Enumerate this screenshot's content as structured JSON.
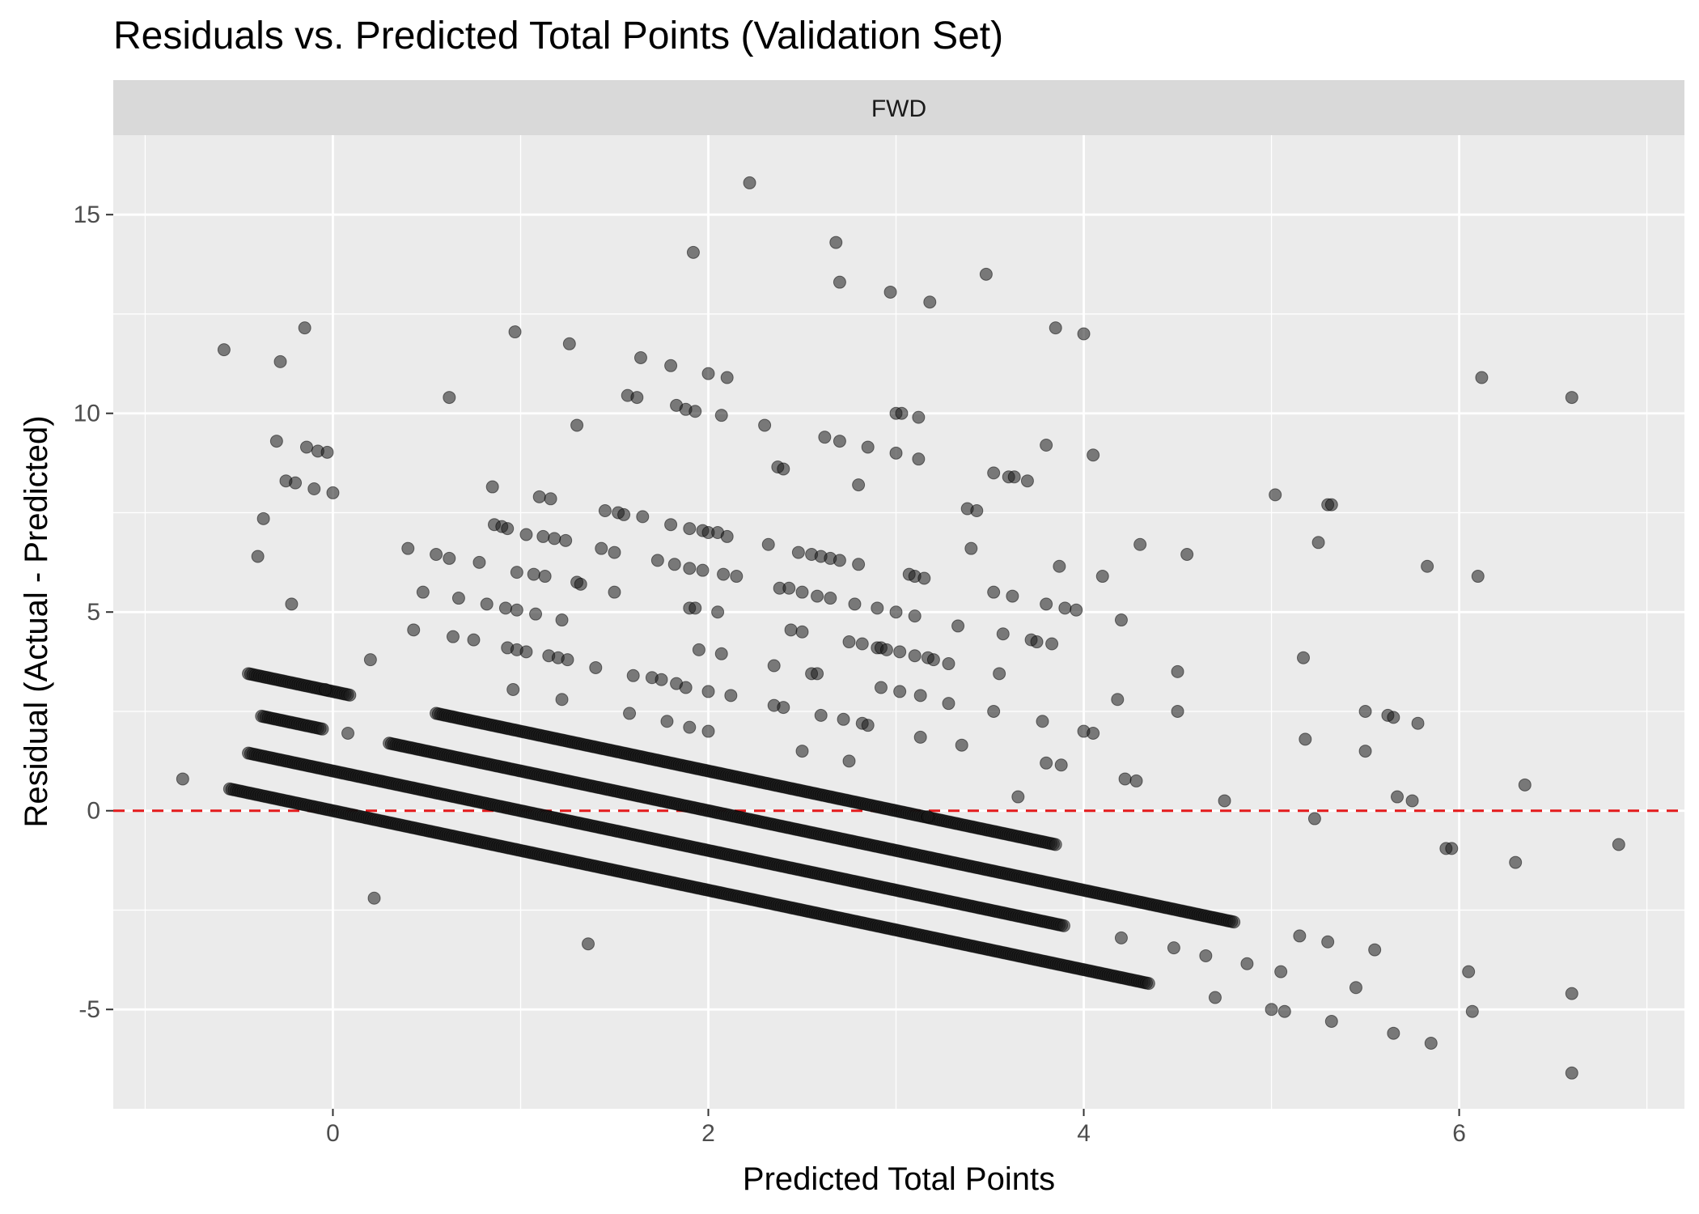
{
  "chart_data": {
    "type": "scatter",
    "title": "Residuals vs. Predicted Total Points (Validation Set)",
    "facet_label": "FWD",
    "xlabel": "Predicted Total Points",
    "ylabel": "Residual (Actual - Predicted)",
    "xlim": [
      -1.17,
      7.2
    ],
    "ylim": [
      -7.5,
      17.0
    ],
    "x_ticks": [
      0,
      2,
      4,
      6
    ],
    "x_tick_labels": [
      "0",
      "2",
      "4",
      "6"
    ],
    "y_ticks": [
      -5,
      0,
      5,
      10,
      15
    ],
    "y_tick_labels": [
      "-5",
      "0",
      "5",
      "10",
      "15"
    ],
    "reference_line": {
      "y": 0,
      "color": "#e41a1c",
      "style": "dashed"
    },
    "point_color": "#1a1a1a",
    "point_opacity": 0.55,
    "grid": true,
    "background_color": "#ebebeb",
    "strip_color": "#d9d9d9",
    "bands": [
      {
        "actual": 0,
        "x_start": -0.55,
        "x_end": 4.35
      },
      {
        "actual": 1,
        "x_start": -0.45,
        "x_end": 3.9
      },
      {
        "actual": 2,
        "x_start": 0.3,
        "x_end": 4.8
      },
      {
        "actual": 3,
        "x_start": -0.45,
        "x_end": 0.1
      },
      {
        "actual": 3,
        "x_start": 0.55,
        "x_end": 3.85
      },
      {
        "actual": 2,
        "x_start": -0.38,
        "x_end": -0.05
      }
    ],
    "points": [
      [
        -0.8,
        0.8
      ],
      [
        -0.58,
        11.6
      ],
      [
        -0.4,
        6.4
      ],
      [
        -0.37,
        7.35
      ],
      [
        -0.3,
        9.3
      ],
      [
        -0.28,
        11.3
      ],
      [
        -0.22,
        5.2
      ],
      [
        -0.25,
        8.3
      ],
      [
        -0.2,
        8.25
      ],
      [
        -0.15,
        12.15
      ],
      [
        -0.14,
        9.15
      ],
      [
        -0.1,
        8.1
      ],
      [
        -0.08,
        9.05
      ],
      [
        -0.03,
        9.02
      ],
      [
        0.0,
        8.0
      ],
      [
        -0.04,
        3.05
      ],
      [
        0.08,
        1.95
      ],
      [
        0.2,
        3.8
      ],
      [
        0.22,
        -2.2
      ],
      [
        0.4,
        6.6
      ],
      [
        0.43,
        4.55
      ],
      [
        0.48,
        5.5
      ],
      [
        0.55,
        6.45
      ],
      [
        0.62,
        10.4
      ],
      [
        0.62,
        6.35
      ],
      [
        0.64,
        4.38
      ],
      [
        0.67,
        5.35
      ],
      [
        0.75,
        4.3
      ],
      [
        0.78,
        6.25
      ],
      [
        0.82,
        5.2
      ],
      [
        0.85,
        8.15
      ],
      [
        0.86,
        7.2
      ],
      [
        0.9,
        7.15
      ],
      [
        0.92,
        5.1
      ],
      [
        0.93,
        7.1
      ],
      [
        0.93,
        4.1
      ],
      [
        0.98,
        4.05
      ],
      [
        0.98,
        5.05
      ],
      [
        0.96,
        3.05
      ],
      [
        0.97,
        12.05
      ],
      [
        0.98,
        6.0
      ],
      [
        1.03,
        6.95
      ],
      [
        1.03,
        4.0
      ],
      [
        1.07,
        5.95
      ],
      [
        1.08,
        4.95
      ],
      [
        1.1,
        7.9
      ],
      [
        1.12,
        6.9
      ],
      [
        1.13,
        5.9
      ],
      [
        1.15,
        3.9
      ],
      [
        1.16,
        7.85
      ],
      [
        1.18,
        6.85
      ],
      [
        1.2,
        3.85
      ],
      [
        1.22,
        2.8
      ],
      [
        1.22,
        4.8
      ],
      [
        1.24,
        6.8
      ],
      [
        1.25,
        3.8
      ],
      [
        1.26,
        11.75
      ],
      [
        1.3,
        9.7
      ],
      [
        1.3,
        5.75
      ],
      [
        1.32,
        5.7
      ],
      [
        1.36,
        -3.35
      ],
      [
        1.4,
        3.6
      ],
      [
        1.43,
        6.6
      ],
      [
        1.45,
        7.55
      ],
      [
        1.5,
        6.5
      ],
      [
        1.5,
        5.5
      ],
      [
        1.52,
        7.5
      ],
      [
        1.55,
        7.45
      ],
      [
        1.57,
        10.45
      ],
      [
        1.58,
        2.45
      ],
      [
        1.6,
        3.4
      ],
      [
        1.62,
        10.4
      ],
      [
        1.64,
        11.4
      ],
      [
        1.65,
        7.4
      ],
      [
        1.7,
        3.35
      ],
      [
        1.73,
        6.3
      ],
      [
        1.75,
        3.3
      ],
      [
        1.78,
        2.25
      ],
      [
        1.8,
        11.2
      ],
      [
        1.8,
        7.2
      ],
      [
        1.82,
        6.2
      ],
      [
        1.83,
        3.2
      ],
      [
        1.83,
        10.2
      ],
      [
        1.88,
        10.1
      ],
      [
        1.88,
        3.1
      ],
      [
        1.9,
        7.1
      ],
      [
        1.9,
        6.1
      ],
      [
        1.9,
        2.1
      ],
      [
        1.9,
        5.1
      ],
      [
        1.93,
        5.1
      ],
      [
        1.92,
        14.05
      ],
      [
        1.93,
        10.05
      ],
      [
        1.95,
        4.05
      ],
      [
        1.97,
        7.05
      ],
      [
        1.97,
        6.05
      ],
      [
        2.0,
        11.0
      ],
      [
        2.0,
        7.0
      ],
      [
        2.0,
        3.0
      ],
      [
        2.0,
        2.0
      ],
      [
        2.05,
        5.0
      ],
      [
        2.05,
        7.0
      ],
      [
        2.07,
        3.95
      ],
      [
        2.07,
        9.95
      ],
      [
        2.08,
        5.95
      ],
      [
        2.1,
        10.9
      ],
      [
        2.1,
        6.9
      ],
      [
        2.12,
        2.9
      ],
      [
        2.15,
        5.9
      ],
      [
        2.22,
        15.8
      ],
      [
        2.3,
        9.7
      ],
      [
        2.32,
        6.7
      ],
      [
        2.35,
        3.65
      ],
      [
        2.35,
        2.65
      ],
      [
        2.37,
        8.65
      ],
      [
        2.38,
        5.6
      ],
      [
        2.4,
        8.6
      ],
      [
        2.4,
        2.6
      ],
      [
        2.43,
        5.6
      ],
      [
        2.44,
        4.55
      ],
      [
        2.48,
        6.5
      ],
      [
        2.5,
        5.5
      ],
      [
        2.5,
        4.5
      ],
      [
        2.5,
        1.5
      ],
      [
        2.55,
        3.45
      ],
      [
        2.55,
        6.45
      ],
      [
        2.58,
        3.45
      ],
      [
        2.58,
        5.4
      ],
      [
        2.6,
        6.4
      ],
      [
        2.6,
        2.4
      ],
      [
        2.62,
        9.4
      ],
      [
        2.65,
        6.35
      ],
      [
        2.65,
        5.35
      ],
      [
        2.68,
        14.3
      ],
      [
        2.7,
        6.3
      ],
      [
        2.7,
        9.3
      ],
      [
        2.7,
        13.3
      ],
      [
        2.72,
        2.3
      ],
      [
        2.75,
        4.25
      ],
      [
        2.75,
        1.25
      ],
      [
        2.78,
        5.2
      ],
      [
        2.8,
        6.2
      ],
      [
        2.8,
        8.2
      ],
      [
        2.82,
        4.2
      ],
      [
        2.82,
        2.2
      ],
      [
        2.85,
        9.15
      ],
      [
        2.85,
        2.15
      ],
      [
        2.9,
        4.1
      ],
      [
        2.9,
        5.1
      ],
      [
        2.92,
        4.1
      ],
      [
        2.92,
        3.1
      ],
      [
        2.95,
        4.05
      ],
      [
        2.97,
        13.05
      ],
      [
        3.0,
        10.0
      ],
      [
        3.0,
        9.0
      ],
      [
        3.0,
        5.0
      ],
      [
        3.02,
        4.0
      ],
      [
        3.02,
        3.0
      ],
      [
        3.03,
        10.0
      ],
      [
        3.07,
        5.95
      ],
      [
        3.1,
        5.9
      ],
      [
        3.1,
        4.9
      ],
      [
        3.1,
        3.9
      ],
      [
        3.12,
        9.9
      ],
      [
        3.12,
        8.85
      ],
      [
        3.13,
        2.9
      ],
      [
        3.13,
        1.85
      ],
      [
        3.15,
        5.85
      ],
      [
        3.17,
        3.85
      ],
      [
        3.18,
        12.8
      ],
      [
        3.2,
        3.8
      ],
      [
        3.17,
        -0.15
      ],
      [
        3.28,
        3.7
      ],
      [
        3.28,
        2.7
      ],
      [
        3.33,
        4.65
      ],
      [
        3.35,
        1.65
      ],
      [
        3.38,
        7.6
      ],
      [
        3.4,
        6.6
      ],
      [
        3.43,
        7.55
      ],
      [
        3.48,
        13.5
      ],
      [
        3.52,
        8.5
      ],
      [
        3.52,
        5.5
      ],
      [
        3.52,
        2.5
      ],
      [
        3.55,
        3.45
      ],
      [
        3.57,
        4.45
      ],
      [
        3.6,
        8.4
      ],
      [
        3.62,
        5.4
      ],
      [
        3.63,
        8.4
      ],
      [
        3.65,
        0.35
      ],
      [
        3.7,
        8.3
      ],
      [
        3.72,
        4.3
      ],
      [
        3.75,
        4.25
      ],
      [
        3.78,
        2.25
      ],
      [
        3.8,
        9.2
      ],
      [
        3.8,
        5.2
      ],
      [
        3.8,
        1.2
      ],
      [
        3.83,
        4.2
      ],
      [
        3.85,
        12.15
      ],
      [
        3.87,
        6.15
      ],
      [
        3.88,
        1.15
      ],
      [
        3.9,
        5.1
      ],
      [
        3.96,
        5.05
      ],
      [
        4.0,
        12.0
      ],
      [
        4.0,
        2.0
      ],
      [
        4.05,
        8.95
      ],
      [
        4.05,
        1.95
      ],
      [
        4.1,
        5.9
      ],
      [
        4.18,
        2.8
      ],
      [
        4.2,
        4.8
      ],
      [
        4.2,
        -3.2
      ],
      [
        4.22,
        0.8
      ],
      [
        4.28,
        0.75
      ],
      [
        4.3,
        6.7
      ],
      [
        4.5,
        3.5
      ],
      [
        4.5,
        2.5
      ],
      [
        4.55,
        6.45
      ],
      [
        4.75,
        0.25
      ],
      [
        4.48,
        -3.45
      ],
      [
        4.65,
        -3.65
      ],
      [
        4.7,
        -4.7
      ],
      [
        4.87,
        -3.85
      ],
      [
        5.02,
        7.95
      ],
      [
        5.0,
        -5.0
      ],
      [
        5.05,
        -4.05
      ],
      [
        5.07,
        -5.05
      ],
      [
        5.15,
        -3.15
      ],
      [
        5.17,
        3.85
      ],
      [
        5.18,
        1.8
      ],
      [
        5.23,
        -0.2
      ],
      [
        5.25,
        6.75
      ],
      [
        5.3,
        7.7
      ],
      [
        5.32,
        7.7
      ],
      [
        5.3,
        -3.3
      ],
      [
        5.32,
        -5.3
      ],
      [
        5.45,
        -4.45
      ],
      [
        5.5,
        2.5
      ],
      [
        5.5,
        1.5
      ],
      [
        5.55,
        -3.5
      ],
      [
        5.62,
        2.4
      ],
      [
        5.65,
        2.35
      ],
      [
        5.65,
        -5.6
      ],
      [
        5.67,
        0.35
      ],
      [
        5.75,
        0.25
      ],
      [
        5.78,
        2.2
      ],
      [
        5.83,
        6.15
      ],
      [
        5.85,
        -5.85
      ],
      [
        5.93,
        -0.95
      ],
      [
        5.96,
        -0.95
      ],
      [
        6.05,
        -4.05
      ],
      [
        6.07,
        -5.05
      ],
      [
        6.1,
        5.9
      ],
      [
        6.12,
        10.9
      ],
      [
        6.3,
        -1.3
      ],
      [
        6.35,
        0.65
      ],
      [
        6.6,
        10.4
      ],
      [
        6.6,
        -4.6
      ],
      [
        6.6,
        -6.6
      ],
      [
        6.85,
        -0.85
      ]
    ]
  }
}
